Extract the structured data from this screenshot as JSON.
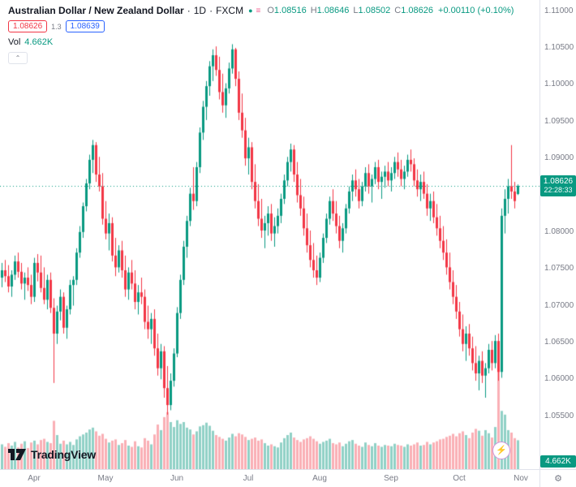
{
  "header": {
    "title": "Australian Dollar / New Zealand Dollar",
    "dot": "·",
    "interval": "1D",
    "exchange": "FXCM",
    "ohlc": {
      "o_label": "O",
      "o": "1.08516",
      "h_label": "H",
      "h": "1.08646",
      "l_label": "L",
      "l": "1.08502",
      "c_label": "C",
      "c": "1.08626",
      "change": "+0.00110 (+0.10%)"
    },
    "sell_price": "1.08626",
    "spread": "1.3",
    "buy_price": "1.08639",
    "vol_label": "Vol",
    "vol_value": "4.662K"
  },
  "axis": {
    "price_badge": {
      "price": "1.08626",
      "countdown": "22:28:33"
    },
    "volume_badge": "4.662K"
  },
  "footer": {
    "brand": "TradingView"
  },
  "icons": {
    "collapse": "⌃",
    "gear": "⚙",
    "lightning": "⚡",
    "dot": "●",
    "menu": "≡"
  },
  "colors": {
    "up": "#089981",
    "down": "#f23645",
    "vol_up": "rgba(8,153,129,0.45)",
    "vol_down": "rgba(242,54,69,0.40)",
    "axis_text": "#787b86",
    "title_text": "#131722",
    "buy_blue": "#2962ff"
  },
  "chart_data": {
    "type": "candlestick",
    "title": "Australian Dollar / New Zealand Dollar · 1D · FXCM",
    "ylim": [
      1.0478,
      1.1115
    ],
    "current_price": 1.08626,
    "volume_unit": "K",
    "volume_max": 19,
    "volume_pane_height": 145,
    "x_step": 4,
    "x_offset": 2,
    "price_ticks": [
      {
        "label": "1.11000",
        "value": 1.11
      },
      {
        "label": "1.10500",
        "value": 1.105
      },
      {
        "label": "1.10000",
        "value": 1.1
      },
      {
        "label": "1.09500",
        "value": 1.095
      },
      {
        "label": "1.09000",
        "value": 1.09
      },
      {
        "label": "1.08000",
        "value": 1.08
      },
      {
        "label": "1.07500",
        "value": 1.075
      },
      {
        "label": "1.07000",
        "value": 1.07
      },
      {
        "label": "1.06500",
        "value": 1.065
      },
      {
        "label": "1.06000",
        "value": 1.06
      },
      {
        "label": "1.05500",
        "value": 1.055
      }
    ],
    "time_ticks": [
      {
        "label": "Apr",
        "i": 10
      },
      {
        "label": "May",
        "i": 32
      },
      {
        "label": "Jun",
        "i": 54
      },
      {
        "label": "Jul",
        "i": 76
      },
      {
        "label": "Aug",
        "i": 98
      },
      {
        "label": "Sep",
        "i": 120
      },
      {
        "label": "Oct",
        "i": 141
      },
      {
        "label": "Nov",
        "i": 160
      }
    ],
    "candles": [
      [
        1.0738,
        1.0758,
        1.0725,
        1.0748,
        4.0
      ],
      [
        1.0748,
        1.0762,
        1.0732,
        1.074,
        3.6
      ],
      [
        1.074,
        1.0755,
        1.0718,
        1.0726,
        4.2
      ],
      [
        1.0726,
        1.0748,
        1.0712,
        1.0742,
        3.8
      ],
      [
        1.0742,
        1.0768,
        1.0735,
        1.076,
        4.4
      ],
      [
        1.076,
        1.0772,
        1.0738,
        1.0746,
        3.5
      ],
      [
        1.0746,
        1.0758,
        1.0722,
        1.073,
        4.1
      ],
      [
        1.073,
        1.0745,
        1.0708,
        1.0738,
        4.5
      ],
      [
        1.0738,
        1.0752,
        1.072,
        1.0728,
        3.4
      ],
      [
        1.0728,
        1.0742,
        1.0702,
        1.0712,
        4.3
      ],
      [
        1.0712,
        1.0765,
        1.0705,
        1.0758,
        4.6
      ],
      [
        1.0758,
        1.077,
        1.0733,
        1.0745,
        4.0
      ],
      [
        1.0745,
        1.0768,
        1.0718,
        1.0724,
        4.7
      ],
      [
        1.0724,
        1.0752,
        1.0702,
        1.0708,
        4.9
      ],
      [
        1.0708,
        1.0742,
        1.0695,
        1.0735,
        4.4
      ],
      [
        1.0735,
        1.0745,
        1.069,
        1.0697,
        4.2
      ],
      [
        1.0697,
        1.071,
        1.0595,
        1.0662,
        7.8
      ],
      [
        1.0662,
        1.07,
        1.0648,
        1.0692,
        5.5
      ],
      [
        1.0692,
        1.0722,
        1.068,
        1.0712,
        4.1
      ],
      [
        1.0712,
        1.0718,
        1.0662,
        1.067,
        4.6
      ],
      [
        1.067,
        1.07,
        1.0655,
        1.0695,
        4.0
      ],
      [
        1.0695,
        1.0735,
        1.0688,
        1.0728,
        4.4
      ],
      [
        1.0728,
        1.074,
        1.07,
        1.0735,
        3.9
      ],
      [
        1.0735,
        1.0778,
        1.0728,
        1.0772,
        4.8
      ],
      [
        1.0772,
        1.0808,
        1.0765,
        1.08,
        5.3
      ],
      [
        1.08,
        1.084,
        1.0792,
        1.0835,
        5.6
      ],
      [
        1.0835,
        1.0872,
        1.0828,
        1.0866,
        5.9
      ],
      [
        1.0866,
        1.0905,
        1.0858,
        1.0898,
        6.4
      ],
      [
        1.0898,
        1.0925,
        1.088,
        1.0918,
        6.7
      ],
      [
        1.0918,
        1.0922,
        1.0868,
        1.0878,
        6.1
      ],
      [
        1.0878,
        1.0902,
        1.0855,
        1.0862,
        5.4
      ],
      [
        1.0862,
        1.088,
        1.081,
        1.0818,
        5.7
      ],
      [
        1.0818,
        1.0842,
        1.079,
        1.0798,
        4.9
      ],
      [
        1.0798,
        1.0825,
        1.0775,
        1.0812,
        4.3
      ],
      [
        1.0812,
        1.082,
        1.076,
        1.0768,
        4.6
      ],
      [
        1.0768,
        1.0792,
        1.074,
        1.0752,
        4.8
      ],
      [
        1.0752,
        1.0782,
        1.0745,
        1.0775,
        3.9
      ],
      [
        1.0775,
        1.0788,
        1.0738,
        1.0748,
        4.2
      ],
      [
        1.0748,
        1.0768,
        1.0712,
        1.0722,
        4.7
      ],
      [
        1.0722,
        1.0752,
        1.0708,
        1.0745,
        3.8
      ],
      [
        1.0745,
        1.0762,
        1.0722,
        1.073,
        3.6
      ],
      [
        1.073,
        1.0748,
        1.0695,
        1.0705,
        4.5
      ],
      [
        1.0705,
        1.0728,
        1.0688,
        1.0718,
        3.7
      ],
      [
        1.0718,
        1.0738,
        1.0702,
        1.0712,
        3.5
      ],
      [
        1.0712,
        1.0722,
        1.0668,
        1.0678,
        5.0
      ],
      [
        1.0678,
        1.07,
        1.0655,
        1.0668,
        4.6
      ],
      [
        1.0668,
        1.069,
        1.0648,
        1.0682,
        4.0
      ],
      [
        1.0682,
        1.0695,
        1.0632,
        1.0642,
        5.6
      ],
      [
        1.0642,
        1.0662,
        1.0605,
        1.0615,
        7.2
      ],
      [
        1.0615,
        1.0648,
        1.06,
        1.0638,
        6.3
      ],
      [
        1.0638,
        1.0645,
        1.0575,
        1.0588,
        8.4
      ],
      [
        1.0588,
        1.0618,
        1.0552,
        1.0565,
        9.2
      ],
      [
        1.0565,
        1.0608,
        1.0558,
        1.0598,
        7.6
      ],
      [
        1.0598,
        1.0642,
        1.059,
        1.0635,
        6.8
      ],
      [
        1.0635,
        1.0698,
        1.063,
        1.069,
        7.9
      ],
      [
        1.069,
        1.0742,
        1.0682,
        1.0735,
        7.3
      ],
      [
        1.0735,
        1.0788,
        1.0728,
        1.078,
        7.6
      ],
      [
        1.078,
        1.0822,
        1.0765,
        1.0815,
        6.7
      ],
      [
        1.0815,
        1.086,
        1.0808,
        1.0852,
        6.4
      ],
      [
        1.0852,
        1.0888,
        1.083,
        1.0842,
        5.6
      ],
      [
        1.0842,
        1.0895,
        1.0835,
        1.0888,
        6.1
      ],
      [
        1.0888,
        1.0942,
        1.088,
        1.0935,
        6.9
      ],
      [
        1.0935,
        1.0978,
        1.0925,
        1.097,
        7.1
      ],
      [
        1.097,
        1.1005,
        1.0952,
        1.0998,
        7.5
      ],
      [
        1.0998,
        1.1032,
        1.0985,
        1.1025,
        7.0
      ],
      [
        1.1025,
        1.1048,
        1.1005,
        1.104,
        6.2
      ],
      [
        1.104,
        1.1052,
        1.1012,
        1.102,
        5.5
      ],
      [
        1.102,
        1.1038,
        1.098,
        1.099,
        5.2
      ],
      [
        1.099,
        1.1015,
        1.0962,
        1.0972,
        4.9
      ],
      [
        1.0972,
        1.1002,
        1.0955,
        1.0995,
        4.6
      ],
      [
        1.0995,
        1.103,
        1.0988,
        1.1022,
        5.1
      ],
      [
        1.1022,
        1.1055,
        1.1015,
        1.1048,
        5.7
      ],
      [
        1.1048,
        1.105,
        1.0998,
        1.1008,
        5.3
      ],
      [
        1.1008,
        1.1018,
        1.0952,
        1.0962,
        5.8
      ],
      [
        1.0962,
        1.0988,
        1.0928,
        1.0938,
        5.6
      ],
      [
        1.0938,
        1.0955,
        1.089,
        1.09,
        5.2
      ],
      [
        1.09,
        1.0928,
        1.0878,
        1.0915,
        4.7
      ],
      [
        1.0915,
        1.0922,
        1.0858,
        1.0868,
        4.9
      ],
      [
        1.0868,
        1.0892,
        1.0832,
        1.0842,
        5.1
      ],
      [
        1.0842,
        1.0865,
        1.0808,
        1.0818,
        4.6
      ],
      [
        1.0818,
        1.0845,
        1.0792,
        1.0802,
        4.8
      ],
      [
        1.0802,
        1.0822,
        1.0778,
        1.0812,
        4.2
      ],
      [
        1.0812,
        1.0835,
        1.0795,
        1.0825,
        3.8
      ],
      [
        1.0825,
        1.0838,
        1.0788,
        1.0798,
        4.0
      ],
      [
        1.0798,
        1.082,
        1.078,
        1.0808,
        3.7
      ],
      [
        1.0808,
        1.0832,
        1.0798,
        1.0822,
        3.5
      ],
      [
        1.0822,
        1.0852,
        1.0812,
        1.0845,
        4.3
      ],
      [
        1.0845,
        1.0878,
        1.0838,
        1.087,
        5.0
      ],
      [
        1.087,
        1.0902,
        1.0862,
        1.0895,
        5.5
      ],
      [
        1.0895,
        1.092,
        1.0882,
        1.0912,
        5.9
      ],
      [
        1.0912,
        1.0918,
        1.0868,
        1.0878,
        5.1
      ],
      [
        1.0878,
        1.0895,
        1.084,
        1.085,
        4.7
      ],
      [
        1.085,
        1.0872,
        1.0822,
        1.0832,
        4.4
      ],
      [
        1.0832,
        1.0848,
        1.0795,
        1.0805,
        4.8
      ],
      [
        1.0805,
        1.0825,
        1.0772,
        1.0782,
        5.0
      ],
      [
        1.0782,
        1.0802,
        1.0752,
        1.0762,
        5.3
      ],
      [
        1.0762,
        1.0785,
        1.0738,
        1.0748,
        4.9
      ],
      [
        1.0748,
        1.0768,
        1.0728,
        1.0738,
        4.5
      ],
      [
        1.0738,
        1.0772,
        1.0732,
        1.0765,
        4.1
      ],
      [
        1.0765,
        1.0798,
        1.0758,
        1.0792,
        4.4
      ],
      [
        1.0792,
        1.0825,
        1.0785,
        1.0818,
        4.6
      ],
      [
        1.0818,
        1.0848,
        1.081,
        1.0842,
        4.9
      ],
      [
        1.0842,
        1.0858,
        1.0815,
        1.0825,
        4.2
      ],
      [
        1.0825,
        1.0842,
        1.0798,
        1.0808,
        4.0
      ],
      [
        1.0808,
        1.0822,
        1.0778,
        1.0788,
        4.3
      ],
      [
        1.0788,
        1.0812,
        1.0772,
        1.0805,
        3.7
      ],
      [
        1.0805,
        1.0838,
        1.0798,
        1.0832,
        4.1
      ],
      [
        1.0832,
        1.0862,
        1.0825,
        1.0855,
        4.5
      ],
      [
        1.0855,
        1.0878,
        1.0842,
        1.087,
        4.7
      ],
      [
        1.087,
        1.0885,
        1.0848,
        1.0858,
        4.1
      ],
      [
        1.0858,
        1.0872,
        1.0832,
        1.0842,
        3.8
      ],
      [
        1.0842,
        1.0868,
        1.0835,
        1.0862,
        3.6
      ],
      [
        1.0862,
        1.0888,
        1.0855,
        1.088,
        4.3
      ],
      [
        1.088,
        1.0892,
        1.0852,
        1.0862,
        3.9
      ],
      [
        1.0862,
        1.0878,
        1.084,
        1.0872,
        3.7
      ],
      [
        1.0872,
        1.0895,
        1.0865,
        1.0888,
        4.2
      ],
      [
        1.0888,
        1.0898,
        1.0858,
        1.0868,
        3.8
      ],
      [
        1.0868,
        1.0882,
        1.0845,
        1.0875,
        3.6
      ],
      [
        1.0875,
        1.089,
        1.086,
        1.0882,
        3.9
      ],
      [
        1.0882,
        1.0895,
        1.0862,
        1.087,
        3.8
      ],
      [
        1.087,
        1.0888,
        1.0855,
        1.088,
        3.7
      ],
      [
        1.088,
        1.0902,
        1.0872,
        1.0895,
        4.1
      ],
      [
        1.0895,
        1.0908,
        1.0875,
        1.0885,
        3.9
      ],
      [
        1.0885,
        1.0898,
        1.0862,
        1.0872,
        3.8
      ],
      [
        1.0872,
        1.089,
        1.0858,
        1.0882,
        3.6
      ],
      [
        1.0882,
        1.0905,
        1.0875,
        1.0898,
        4.0
      ],
      [
        1.0898,
        1.0912,
        1.0882,
        1.0892,
        3.8
      ],
      [
        1.0892,
        1.09,
        1.0862,
        1.087,
        4.0
      ],
      [
        1.087,
        1.0885,
        1.0848,
        1.0858,
        4.3
      ],
      [
        1.0858,
        1.0878,
        1.0842,
        1.0868,
        3.8
      ],
      [
        1.0868,
        1.0882,
        1.0845,
        1.0852,
        3.9
      ],
      [
        1.0852,
        1.0865,
        1.0822,
        1.0832,
        4.4
      ],
      [
        1.0832,
        1.0852,
        1.0815,
        1.0842,
        4.0
      ],
      [
        1.0842,
        1.0855,
        1.0812,
        1.082,
        4.3
      ],
      [
        1.082,
        1.0838,
        1.0795,
        1.0805,
        4.5
      ],
      [
        1.0805,
        1.0822,
        1.0778,
        1.0788,
        4.8
      ],
      [
        1.0788,
        1.0808,
        1.0762,
        1.0772,
        4.9
      ],
      [
        1.0772,
        1.079,
        1.0742,
        1.0752,
        5.2
      ],
      [
        1.0752,
        1.0772,
        1.0722,
        1.0732,
        5.4
      ],
      [
        1.0732,
        1.0748,
        1.0702,
        1.0712,
        5.7
      ],
      [
        1.0712,
        1.0728,
        1.0682,
        1.0692,
        5.3
      ],
      [
        1.0692,
        1.0705,
        1.0658,
        1.0668,
        5.8
      ],
      [
        1.0668,
        1.0688,
        1.0638,
        1.0648,
        6.1
      ],
      [
        1.0648,
        1.0672,
        1.0625,
        1.0662,
        5.5
      ],
      [
        1.0662,
        1.0675,
        1.0632,
        1.0642,
        5.0
      ],
      [
        1.0642,
        1.0658,
        1.0612,
        1.0622,
        5.9
      ],
      [
        1.0622,
        1.0645,
        1.0598,
        1.0608,
        6.5
      ],
      [
        1.0608,
        1.0632,
        1.0585,
        1.0625,
        6.2
      ],
      [
        1.0625,
        1.0638,
        1.0595,
        1.0605,
        5.4
      ],
      [
        1.0605,
        1.0622,
        1.0575,
        1.0615,
        6.3
      ],
      [
        1.0615,
        1.0648,
        1.0608,
        1.064,
        5.8
      ],
      [
        1.064,
        1.0652,
        1.0612,
        1.0622,
        5.1
      ],
      [
        1.0622,
        1.066,
        1.0615,
        1.0652,
        6.8
      ],
      [
        1.0652,
        1.0662,
        1.0598,
        1.061,
        18.6
      ],
      [
        1.061,
        1.0832,
        1.0602,
        1.0822,
        9.4
      ],
      [
        1.0822,
        1.0858,
        1.0798,
        1.0845,
        8.8
      ],
      [
        1.0845,
        1.0872,
        1.0825,
        1.0862,
        6.3
      ],
      [
        1.0862,
        1.0918,
        1.0845,
        1.0855,
        5.9
      ],
      [
        1.0855,
        1.0868,
        1.0832,
        1.0842,
        5.0
      ],
      [
        1.08516,
        1.08646,
        1.08502,
        1.08626,
        4.662
      ]
    ]
  }
}
